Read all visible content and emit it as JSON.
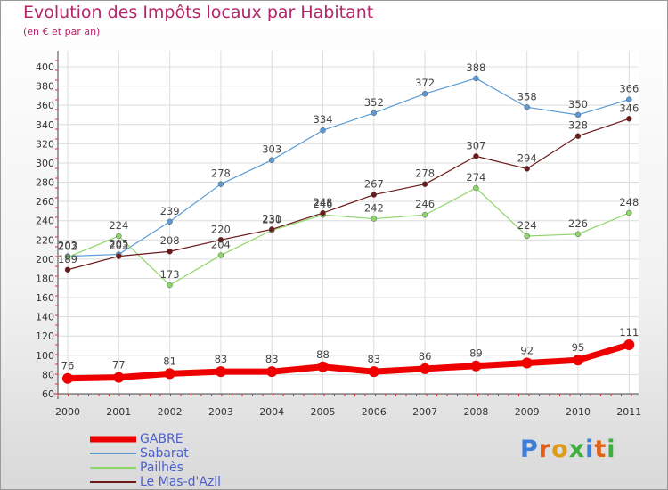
{
  "title": "Evolution des Impôts locaux par Habitant",
  "subtitle": "(en € et par an)",
  "brand": {
    "text": "Proxiti",
    "letter_colors": [
      "#3d7fd6",
      "#e0621a",
      "#e09a1a",
      "#3fae3f",
      "#3d7fd6",
      "#e0621a",
      "#3fae3f"
    ]
  },
  "chart_data": {
    "type": "line",
    "categories": [
      "2000",
      "2001",
      "2002",
      "2003",
      "2004",
      "2005",
      "2006",
      "2007",
      "2008",
      "2009",
      "2010",
      "2011"
    ],
    "yticks": [
      "60",
      "80",
      "100",
      "120",
      "140",
      "160",
      "180",
      "200",
      "220",
      "240",
      "260",
      "280",
      "300",
      "320",
      "340",
      "360",
      "380",
      "400"
    ],
    "ylim": [
      60,
      400
    ],
    "grid": true,
    "legend_position": "bottom-left",
    "series": [
      {
        "name": "GABRE",
        "color": "#ee0000",
        "values": [
          76,
          77,
          81,
          83,
          83,
          88,
          83,
          86,
          89,
          92,
          95,
          111
        ],
        "labels": [
          "76",
          "77",
          "81",
          "83",
          "83",
          "88",
          "83",
          "86",
          "89",
          "92",
          "95",
          "111"
        ]
      },
      {
        "name": "Sabarat",
        "color": "#5b9bd5",
        "values": [
          203,
          205,
          239,
          278,
          303,
          334,
          352,
          372,
          388,
          358,
          350,
          366
        ],
        "labels": [
          "203",
          "205",
          "239",
          "278",
          "303",
          "334",
          "352",
          "372",
          "388",
          "358",
          "350",
          "366"
        ]
      },
      {
        "name": "Pailhès",
        "color": "#8fd66a",
        "values": [
          202,
          224,
          173,
          204,
          230,
          246,
          242,
          246,
          274,
          224,
          226,
          248
        ],
        "labels": [
          "202",
          "224",
          "173",
          "204",
          "230",
          "246",
          "242",
          "246",
          "274",
          "224",
          "226",
          "248"
        ]
      },
      {
        "name": "Le Mas-d'Azil",
        "color": "#6b1a1a",
        "values": [
          189,
          203,
          208,
          220,
          231,
          248,
          267,
          278,
          307,
          294,
          328,
          346
        ],
        "labels": [
          "189",
          "203",
          "208",
          "220",
          "231",
          "248",
          "267",
          "278",
          "307",
          "294",
          "328",
          "346"
        ]
      }
    ]
  }
}
